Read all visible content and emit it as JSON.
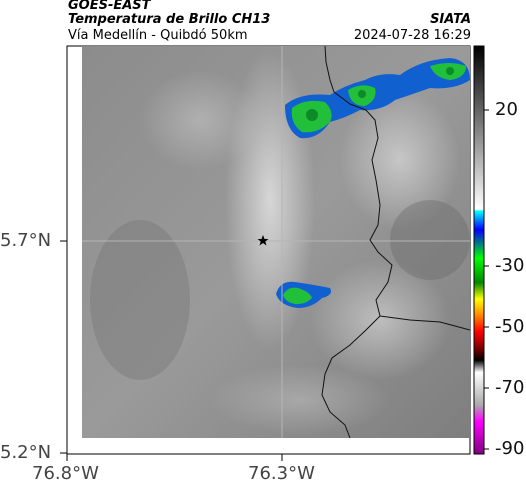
{
  "header": {
    "source": "GOES-EAST",
    "product": "Temperatura de Brillo CH13",
    "route": "Vía Medellín - Quibdó 50km",
    "org": "SIATA",
    "datetime": "2024-07-28 16:29"
  },
  "map": {
    "lat_labels": [
      "5.7°N",
      "5.2°N"
    ],
    "lon_labels": [
      "76.8°W",
      "76.3°W"
    ],
    "marker_icon": "star-icon"
  },
  "colorbar": {
    "ticks": [
      "20",
      "-30",
      "-50",
      "-70",
      "-90"
    ]
  },
  "colors": {
    "cold_cloud_blue": "#0055cc",
    "cold_cloud_green": "#22c03a",
    "background_gray": "#8a8a8a"
  }
}
